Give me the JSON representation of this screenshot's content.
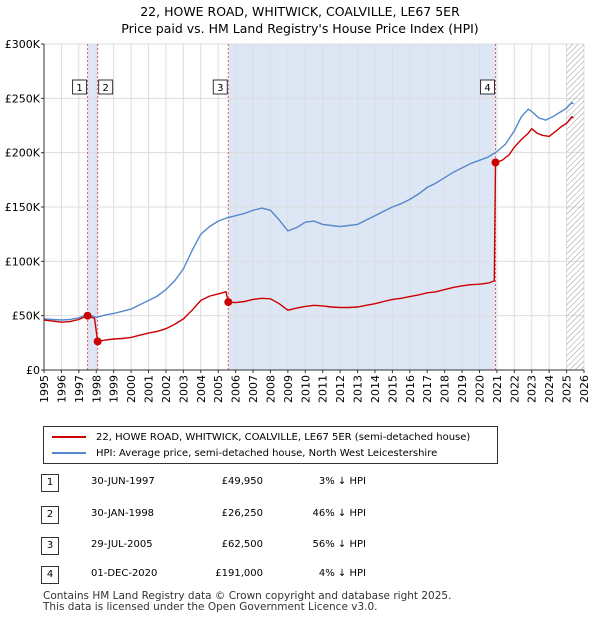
{
  "title_line1": "22, HOWE ROAD, WHITWICK, COALVILLE, LE67 5ER",
  "title_line2": "Price paid vs. HM Land Registry's House Price Index (HPI)",
  "colors": {
    "property": "#cc0000",
    "hpi": "#5588cc",
    "shade": "#dde6f5"
  },
  "chart_data": {
    "type": "line",
    "xlim": [
      1995,
      2026
    ],
    "ylim": [
      0,
      300000
    ],
    "yticks": [
      {
        "value": 0,
        "label": "£0"
      },
      {
        "value": 50000,
        "label": "£50K"
      },
      {
        "value": 100000,
        "label": "£100K"
      },
      {
        "value": 150000,
        "label": "£150K"
      },
      {
        "value": 200000,
        "label": "£200K"
      },
      {
        "value": 250000,
        "label": "£250K"
      },
      {
        "value": 300000,
        "label": "£300K"
      }
    ],
    "xticks": [
      1995,
      1996,
      1997,
      1998,
      1999,
      2000,
      2001,
      2002,
      2003,
      2004,
      2005,
      2006,
      2007,
      2008,
      2009,
      2010,
      2011,
      2012,
      2013,
      2014,
      2015,
      2016,
      2017,
      2018,
      2019,
      2020,
      2021,
      2022,
      2023,
      2024,
      2025,
      2026
    ],
    "shaded_ranges": [
      [
        1997.5,
        1998.08
      ],
      [
        2005.58,
        2020.92
      ]
    ],
    "hatched_from": 2025.0,
    "series": [
      {
        "name": "22, HOWE ROAD, WHITWICK, COALVILLE, LE67 5ER (semi-detached house)",
        "color": "#cc0000",
        "points": [
          [
            1995.0,
            46000
          ],
          [
            1995.5,
            45000
          ],
          [
            1996.0,
            44000
          ],
          [
            1996.5,
            44500
          ],
          [
            1997.0,
            46500
          ],
          [
            1997.5,
            49950
          ],
          [
            1997.9,
            47500
          ],
          [
            1998.08,
            26250
          ],
          [
            1998.5,
            27500
          ],
          [
            1999.0,
            28500
          ],
          [
            1999.5,
            29000
          ],
          [
            2000.0,
            30000
          ],
          [
            2000.5,
            32000
          ],
          [
            2001.0,
            34000
          ],
          [
            2001.5,
            35500
          ],
          [
            2002.0,
            38000
          ],
          [
            2002.5,
            42000
          ],
          [
            2003.0,
            47000
          ],
          [
            2003.5,
            55000
          ],
          [
            2004.0,
            64000
          ],
          [
            2004.5,
            68000
          ],
          [
            2005.0,
            70000
          ],
          [
            2005.45,
            72000
          ],
          [
            2005.58,
            62500
          ],
          [
            2006.0,
            62000
          ],
          [
            2006.5,
            63000
          ],
          [
            2007.0,
            65000
          ],
          [
            2007.5,
            66000
          ],
          [
            2008.0,
            65500
          ],
          [
            2008.5,
            61000
          ],
          [
            2009.0,
            55000
          ],
          [
            2009.5,
            57000
          ],
          [
            2010.0,
            58500
          ],
          [
            2010.5,
            59500
          ],
          [
            2011.0,
            59000
          ],
          [
            2011.5,
            58000
          ],
          [
            2012.0,
            57500
          ],
          [
            2012.5,
            57500
          ],
          [
            2013.0,
            58000
          ],
          [
            2013.5,
            59500
          ],
          [
            2014.0,
            61000
          ],
          [
            2014.5,
            63000
          ],
          [
            2015.0,
            65000
          ],
          [
            2015.5,
            66000
          ],
          [
            2016.0,
            67500
          ],
          [
            2016.5,
            69000
          ],
          [
            2017.0,
            71000
          ],
          [
            2017.5,
            72000
          ],
          [
            2018.0,
            74000
          ],
          [
            2018.5,
            76000
          ],
          [
            2019.0,
            77500
          ],
          [
            2019.5,
            78500
          ],
          [
            2020.0,
            79000
          ],
          [
            2020.5,
            80000
          ],
          [
            2020.85,
            82000
          ],
          [
            2020.92,
            191000
          ],
          [
            2021.3,
            193000
          ],
          [
            2021.7,
            198000
          ],
          [
            2022.0,
            205000
          ],
          [
            2022.4,
            212000
          ],
          [
            2022.8,
            218000
          ],
          [
            2023.0,
            222000
          ],
          [
            2023.3,
            218000
          ],
          [
            2023.6,
            216000
          ],
          [
            2024.0,
            215000
          ],
          [
            2024.4,
            220000
          ],
          [
            2024.7,
            224000
          ],
          [
            2025.0,
            227000
          ],
          [
            2025.3,
            233000
          ],
          [
            2025.4,
            232000
          ]
        ]
      },
      {
        "name": "HPI: Average price, semi-detached house, North West Leicestershire",
        "color": "#5588cc",
        "points": [
          [
            1995.0,
            47000
          ],
          [
            1995.5,
            46500
          ],
          [
            1996.0,
            46000
          ],
          [
            1996.5,
            46500
          ],
          [
            1997.0,
            48000
          ],
          [
            1997.5,
            51000
          ],
          [
            1998.0,
            48500
          ],
          [
            1998.5,
            50500
          ],
          [
            1999.0,
            52000
          ],
          [
            1999.5,
            54000
          ],
          [
            2000.0,
            56000
          ],
          [
            2000.5,
            60000
          ],
          [
            2001.0,
            64000
          ],
          [
            2001.5,
            68000
          ],
          [
            2002.0,
            74000
          ],
          [
            2002.5,
            82000
          ],
          [
            2003.0,
            93000
          ],
          [
            2003.5,
            110000
          ],
          [
            2004.0,
            125000
          ],
          [
            2004.5,
            132000
          ],
          [
            2005.0,
            137000
          ],
          [
            2005.5,
            140000
          ],
          [
            2006.0,
            142000
          ],
          [
            2006.5,
            144000
          ],
          [
            2007.0,
            147000
          ],
          [
            2007.5,
            149000
          ],
          [
            2008.0,
            147000
          ],
          [
            2008.5,
            138000
          ],
          [
            2009.0,
            128000
          ],
          [
            2009.5,
            131000
          ],
          [
            2010.0,
            136000
          ],
          [
            2010.5,
            137000
          ],
          [
            2011.0,
            134000
          ],
          [
            2011.5,
            133000
          ],
          [
            2012.0,
            132000
          ],
          [
            2012.5,
            133000
          ],
          [
            2013.0,
            134000
          ],
          [
            2013.5,
            138000
          ],
          [
            2014.0,
            142000
          ],
          [
            2014.5,
            146000
          ],
          [
            2015.0,
            150000
          ],
          [
            2015.5,
            153000
          ],
          [
            2016.0,
            157000
          ],
          [
            2016.5,
            162000
          ],
          [
            2017.0,
            168000
          ],
          [
            2017.5,
            172000
          ],
          [
            2018.0,
            177000
          ],
          [
            2018.5,
            182000
          ],
          [
            2019.0,
            186000
          ],
          [
            2019.5,
            190000
          ],
          [
            2020.0,
            193000
          ],
          [
            2020.5,
            196000
          ],
          [
            2021.0,
            201000
          ],
          [
            2021.5,
            208000
          ],
          [
            2022.0,
            220000
          ],
          [
            2022.4,
            233000
          ],
          [
            2022.8,
            240000
          ],
          [
            2023.0,
            238000
          ],
          [
            2023.4,
            232000
          ],
          [
            2023.8,
            230000
          ],
          [
            2024.2,
            233000
          ],
          [
            2024.6,
            237000
          ],
          [
            2025.0,
            241000
          ],
          [
            2025.3,
            246000
          ],
          [
            2025.4,
            245000
          ]
        ]
      }
    ],
    "sales": [
      {
        "num": "1",
        "x": 1997.5,
        "price": 49950,
        "label_pos": "left"
      },
      {
        "num": "2",
        "x": 1998.08,
        "price": 26250,
        "label_pos": "right"
      },
      {
        "num": "3",
        "x": 2005.58,
        "price": 62500,
        "label_pos": "left"
      },
      {
        "num": "4",
        "x": 2020.92,
        "price": 191000,
        "label_pos": "left"
      }
    ]
  },
  "legend": {
    "property": "22, HOWE ROAD, WHITWICK, COALVILLE, LE67 5ER (semi-detached house)",
    "hpi": "HPI: Average price, semi-detached house, North West Leicestershire"
  },
  "transactions": [
    {
      "num": "1",
      "date": "30-JUN-1997",
      "price": "£49,950",
      "hpi": "3% ↓ HPI"
    },
    {
      "num": "2",
      "date": "30-JAN-1998",
      "price": "£26,250",
      "hpi": "46% ↓ HPI"
    },
    {
      "num": "3",
      "date": "29-JUL-2005",
      "price": "£62,500",
      "hpi": "56% ↓ HPI"
    },
    {
      "num": "4",
      "date": "01-DEC-2020",
      "price": "£191,000",
      "hpi": "4% ↓ HPI"
    }
  ],
  "footer": {
    "line1": "Contains HM Land Registry data © Crown copyright and database right 2025.",
    "line2": "This data is licensed under the Open Government Licence v3.0."
  }
}
